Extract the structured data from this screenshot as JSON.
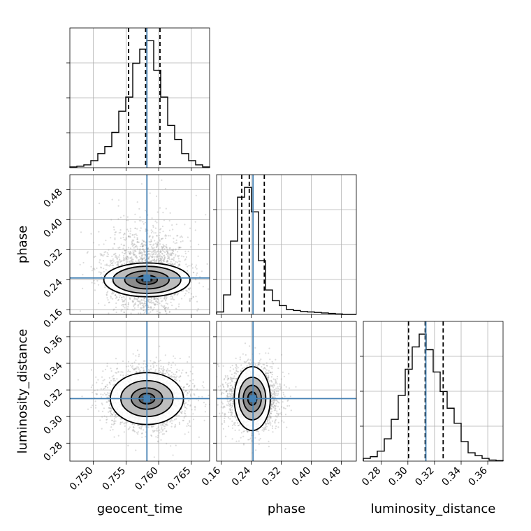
{
  "chart_data": {
    "type": "corner",
    "parameters": [
      "geocent_time",
      "phase",
      "luminosity_distance"
    ],
    "truth_color": "#4682b4",
    "truths": {
      "geocent_time": 0.7582,
      "phase": 0.245,
      "luminosity_distance": 0.3135
    },
    "quantiles": {
      "geocent_time": [
        0.7554,
        0.758,
        0.7602
      ],
      "phase": [
        0.215,
        0.235,
        0.275
      ],
      "luminosity_distance": [
        0.3005,
        0.313,
        0.3265
      ]
    },
    "axes": {
      "geocent_time": {
        "label": "geocent_time",
        "range": [
          0.7464,
          0.7678
        ],
        "ticks": [
          0.75,
          0.755,
          0.76,
          0.765
        ],
        "tick_labels": [
          "0.750",
          "0.755",
          "0.760",
          "0.765"
        ]
      },
      "phase": {
        "label": "phase",
        "range": [
          0.148,
          0.52
        ],
        "ticks": [
          0.16,
          0.24,
          0.32,
          0.4,
          0.48
        ],
        "tick_labels": [
          "0.16",
          "0.24",
          "0.32",
          "0.40",
          "0.48"
        ]
      },
      "luminosity_distance": {
        "label": "luminosity_distance",
        "range": [
          0.2665,
          0.3715
        ],
        "ticks": [
          0.28,
          0.3,
          0.32,
          0.34,
          0.36
        ],
        "tick_labels": [
          "0.28",
          "0.30",
          "0.32",
          "0.34",
          "0.36"
        ]
      }
    },
    "histograms": {
      "geocent_time": {
        "bin_edges": [
          0.7464,
          0.74747,
          0.74854,
          0.74961,
          0.75068,
          0.75175,
          0.75282,
          0.75389,
          0.75496,
          0.75603,
          0.7571,
          0.75817,
          0.75924,
          0.76031,
          0.76138,
          0.76245,
          0.76352,
          0.76459,
          0.76566,
          0.76673,
          0.7678
        ],
        "counts": [
          1,
          2,
          4,
          10,
          20,
          30,
          50,
          80,
          100,
          148,
          168,
          180,
          138,
          100,
          60,
          40,
          20,
          10,
          4,
          1
        ]
      },
      "phase": {
        "bin_edges": [
          0.148,
          0.1666,
          0.1852,
          0.2038,
          0.2224,
          0.241,
          0.2596,
          0.2782,
          0.2968,
          0.3154,
          0.334,
          0.3526,
          0.3712,
          0.3898,
          0.4084,
          0.427,
          0.4456,
          0.4642,
          0.4828,
          0.5014,
          0.52
        ],
        "counts": [
          5,
          40,
          150,
          240,
          260,
          210,
          110,
          50,
          28,
          18,
          10,
          8,
          6,
          5,
          4,
          3,
          2,
          1,
          0,
          0
        ]
      },
      "luminosity_distance": {
        "bin_edges": [
          0.2665,
          0.27175,
          0.277,
          0.28225,
          0.2875,
          0.29275,
          0.298,
          0.30325,
          0.3085,
          0.31375,
          0.319,
          0.32425,
          0.3295,
          0.33475,
          0.34,
          0.34525,
          0.3505,
          0.35575,
          0.361,
          0.36625,
          0.3715
        ],
        "counts": [
          5,
          8,
          18,
          40,
          75,
          118,
          165,
          205,
          228,
          200,
          160,
          125,
          95,
          68,
          35,
          15,
          10,
          5,
          2,
          1
        ]
      }
    },
    "scatter_panels": [
      {
        "x": "geocent_time",
        "y": "phase",
        "peak": [
          0.7582,
          0.24
        ],
        "sigma": [
          0.0032,
          0.048
        ],
        "contours": [
          {
            "rx": 0.0016,
            "ry": 0.012,
            "rot": 0
          },
          {
            "rx": 0.0034,
            "ry": 0.024,
            "rot": 0
          },
          {
            "rx": 0.0052,
            "ry": 0.036,
            "rot": 0
          },
          {
            "rx": 0.0066,
            "ry": 0.045,
            "rot": 0
          }
        ]
      },
      {
        "x": "geocent_time",
        "y": "luminosity_distance",
        "peak": [
          0.7582,
          0.3135
        ],
        "sigma": [
          0.0032,
          0.012
        ],
        "contours": [
          {
            "rx": 0.0012,
            "ry": 0.004,
            "rot": 0
          },
          {
            "rx": 0.0024,
            "ry": 0.008,
            "rot": 0
          },
          {
            "rx": 0.004,
            "ry": 0.0135,
            "rot": 0
          },
          {
            "rx": 0.0056,
            "ry": 0.0195,
            "rot": 0
          }
        ]
      },
      {
        "x": "phase",
        "y": "luminosity_distance",
        "peak": [
          0.243,
          0.3135
        ],
        "sigma": [
          0.035,
          0.012
        ],
        "contours": [
          {
            "rx": 0.012,
            "ry": 0.005,
            "rot": 0
          },
          {
            "rx": 0.024,
            "ry": 0.01,
            "rot": 0
          },
          {
            "rx": 0.036,
            "ry": 0.016,
            "rot": 0
          },
          {
            "rx": 0.048,
            "ry": 0.024,
            "rot": 0
          }
        ]
      }
    ],
    "grid": true
  }
}
